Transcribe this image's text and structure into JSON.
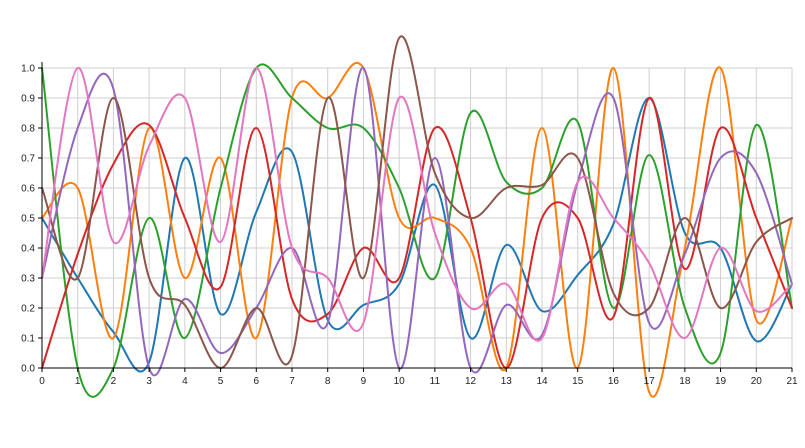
{
  "chart_data": {
    "type": "line",
    "title": "",
    "xlabel": "",
    "ylabel": "",
    "xlim": [
      0,
      21
    ],
    "ylim": [
      0,
      1
    ],
    "grid": true,
    "legend": "none",
    "x_ticks": [
      "0",
      "1",
      "2",
      "3",
      "4",
      "5",
      "6",
      "7",
      "8",
      "9",
      "10",
      "11",
      "12",
      "13",
      "14",
      "15",
      "16",
      "17",
      "18",
      "19",
      "20",
      "21"
    ],
    "y_ticks": [
      "0.0",
      "0.1",
      "0.2",
      "0.3",
      "0.4",
      "0.5",
      "0.6",
      "0.7",
      "0.8",
      "0.9",
      "1.0"
    ],
    "x": [
      0,
      1,
      2,
      3,
      4,
      5,
      6,
      7,
      8,
      9,
      10,
      11,
      12,
      13,
      14,
      15,
      16,
      17,
      18,
      19,
      20,
      21
    ],
    "series": [
      {
        "color": "#1f77b4",
        "values": [
          0.5,
          0.3,
          0.12,
          0.02,
          0.7,
          0.18,
          0.52,
          0.72,
          0.16,
          0.21,
          0.28,
          0.61,
          0.1,
          0.41,
          0.19,
          0.31,
          0.48,
          0.9,
          0.45,
          0.4,
          0.09,
          0.28
        ]
      },
      {
        "color": "#ff7f0e",
        "values": [
          0.5,
          0.6,
          0.1,
          0.8,
          0.3,
          0.7,
          0.1,
          0.9,
          0.9,
          1.0,
          0.5,
          0.5,
          0.4,
          0.0,
          0.8,
          0.0,
          1.0,
          -0.08,
          0.4,
          1.0,
          0.16,
          0.5
        ]
      },
      {
        "color": "#2ca02c",
        "values": [
          1.0,
          0.0,
          0.0,
          0.5,
          0.1,
          0.6,
          1.0,
          0.9,
          0.8,
          0.8,
          0.6,
          0.3,
          0.85,
          0.62,
          0.6,
          0.82,
          0.2,
          0.71,
          0.2,
          0.05,
          0.81,
          0.2
        ]
      },
      {
        "color": "#d62728",
        "values": [
          0.0,
          0.38,
          0.68,
          0.81,
          0.5,
          0.27,
          0.8,
          0.23,
          0.18,
          0.4,
          0.3,
          0.8,
          0.5,
          0.0,
          0.5,
          0.5,
          0.17,
          0.9,
          0.33,
          0.8,
          0.5,
          0.2
        ]
      },
      {
        "color": "#9467bd",
        "values": [
          0.3,
          0.8,
          0.93,
          0.0,
          0.23,
          0.05,
          0.2,
          0.4,
          0.15,
          1.0,
          0.0,
          0.7,
          0.0,
          0.21,
          0.11,
          0.62,
          0.9,
          0.15,
          0.38,
          0.7,
          0.65,
          0.28
        ]
      },
      {
        "color": "#8c564b",
        "values": [
          0.6,
          0.3,
          0.9,
          0.3,
          0.21,
          0.0,
          0.2,
          0.04,
          0.9,
          0.3,
          1.1,
          0.65,
          0.5,
          0.6,
          0.61,
          0.7,
          0.25,
          0.2,
          0.5,
          0.2,
          0.42,
          0.5
        ]
      },
      {
        "color": "#e377c2",
        "values": [
          0.3,
          1.0,
          0.42,
          0.74,
          0.9,
          0.42,
          1.0,
          0.4,
          0.3,
          0.15,
          0.9,
          0.45,
          0.2,
          0.28,
          0.1,
          0.62,
          0.5,
          0.35,
          0.1,
          0.4,
          0.19,
          0.28
        ]
      }
    ]
  }
}
